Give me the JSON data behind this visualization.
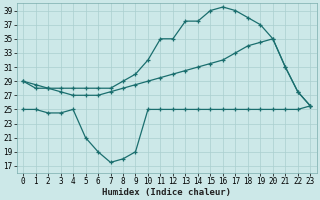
{
  "xlabel": "Humidex (Indice chaleur)",
  "bg_color": "#cce8e8",
  "line_color": "#1a6e6e",
  "grid_color": "#aacfcf",
  "xlim": [
    -0.5,
    23.5
  ],
  "ylim": [
    16,
    40
  ],
  "yticks": [
    17,
    19,
    21,
    23,
    25,
    27,
    29,
    31,
    33,
    35,
    37,
    39
  ],
  "xticks": [
    0,
    1,
    2,
    3,
    4,
    5,
    6,
    7,
    8,
    9,
    10,
    11,
    12,
    13,
    14,
    15,
    16,
    17,
    18,
    19,
    20,
    21,
    22,
    23
  ],
  "line1_x": [
    0,
    1,
    2,
    3,
    4,
    5,
    6,
    7,
    8,
    9,
    10,
    11,
    12,
    13,
    14,
    15,
    16,
    17,
    18,
    19,
    20,
    21,
    22,
    23
  ],
  "line1_y": [
    29,
    28,
    28,
    28,
    28,
    28,
    28,
    28,
    29,
    30,
    32,
    35,
    35,
    37.5,
    37.5,
    39,
    39.5,
    39,
    38,
    37,
    35,
    31,
    27.5,
    25.5
  ],
  "line2_x": [
    0,
    1,
    2,
    3,
    4,
    5,
    6,
    7,
    8,
    9,
    10,
    11,
    12,
    13,
    14,
    15,
    16,
    17,
    18,
    19,
    20,
    21,
    22,
    23
  ],
  "line2_y": [
    29,
    28.5,
    28,
    27.5,
    27,
    27,
    27,
    27.5,
    28,
    28.5,
    29,
    29.5,
    30,
    30.5,
    31,
    31.5,
    32,
    33,
    34,
    34.5,
    35,
    31,
    27.5,
    25.5
  ],
  "line3_x": [
    0,
    1,
    2,
    3,
    4,
    5,
    6,
    7,
    8,
    9,
    10,
    11,
    12,
    13,
    14,
    15,
    16,
    17,
    18,
    19,
    20,
    21,
    22,
    23
  ],
  "line3_y": [
    25,
    25,
    24.5,
    24.5,
    25,
    21,
    19,
    17.5,
    18,
    19,
    25,
    25,
    25,
    25,
    25,
    25,
    25,
    25,
    25,
    25,
    25,
    25,
    25,
    25.5
  ],
  "tick_fontsize": 5.5,
  "xlabel_fontsize": 6.5,
  "marker_size": 3.5,
  "linewidth": 0.9
}
